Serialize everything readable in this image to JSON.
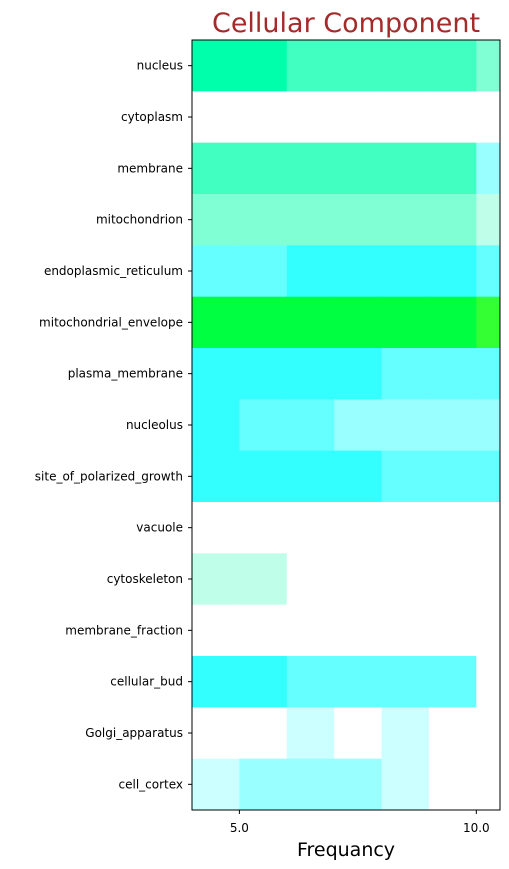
{
  "chart_data": {
    "type": "heatmap",
    "title": "Cellular Component",
    "title_color": "#a52a2a",
    "xlabel": "Frequancy",
    "ylabel": "",
    "x_ticks": [
      "5.0",
      "10.0"
    ],
    "x_tick_values": [
      5,
      10
    ],
    "x_columns": [
      4.5,
      5.5,
      6.5,
      7.5,
      8.5,
      9.5,
      10.5
    ],
    "xlim": [
      4,
      10.5
    ],
    "rows": [
      "nucleus",
      "cytoplasm",
      "membrane",
      "mitochondrion",
      "endoplasmic_reticulum",
      "mitochondrial_envelope",
      "plasma_membrane",
      "nucleolus",
      "site_of_polarized_growth",
      "vacuole",
      "cytoskeleton",
      "membrane_fraction",
      "cellular_bud",
      "Golgi_apparatus",
      "cell_cortex"
    ],
    "cell_colors": [
      [
        "#00ffaa",
        "#00ffaa",
        "#40ffc0",
        "#40ffc0",
        "#40ffc0",
        "#40ffc0",
        "#80ffd4"
      ],
      [
        "#ffffff",
        "#ffffff",
        "#ffffff",
        "#ffffff",
        "#ffffff",
        "#ffffff",
        "#ffffff"
      ],
      [
        "#40ffc0",
        "#40ffc0",
        "#40ffc0",
        "#40ffc0",
        "#40ffc0",
        "#40ffc0",
        "#99ffff"
      ],
      [
        "#80ffd4",
        "#80ffd4",
        "#80ffd4",
        "#80ffd4",
        "#80ffd4",
        "#80ffd4",
        "#bfffe9"
      ],
      [
        "#66ffff",
        "#66ffff",
        "#33ffff",
        "#33ffff",
        "#33ffff",
        "#33ffff",
        "#66ffff"
      ],
      [
        "#00ff40",
        "#00ff40",
        "#00ff40",
        "#00ff40",
        "#00ff40",
        "#00ff40",
        "#33ff33"
      ],
      [
        "#33ffff",
        "#33ffff",
        "#33ffff",
        "#33ffff",
        "#66ffff",
        "#66ffff",
        "#66ffff"
      ],
      [
        "#33ffff",
        "#66ffff",
        "#66ffff",
        "#99ffff",
        "#99ffff",
        "#99ffff",
        "#99ffff"
      ],
      [
        "#33ffff",
        "#33ffff",
        "#33ffff",
        "#33ffff",
        "#66ffff",
        "#66ffff",
        "#66ffff"
      ],
      [
        "#ffffff",
        "#ffffff",
        "#ffffff",
        "#ffffff",
        "#ffffff",
        "#ffffff",
        "#ffffff"
      ],
      [
        "#bfffe9",
        "#bfffe9",
        "#ffffff",
        "#ffffff",
        "#ffffff",
        "#ffffff",
        "#ffffff"
      ],
      [
        "#ffffff",
        "#ffffff",
        "#ffffff",
        "#ffffff",
        "#ffffff",
        "#ffffff",
        "#ffffff"
      ],
      [
        "#33ffff",
        "#33ffff",
        "#66ffff",
        "#66ffff",
        "#66ffff",
        "#66ffff",
        "#ffffff"
      ],
      [
        "#ffffff",
        "#ffffff",
        "#ccffff",
        "#ffffff",
        "#ccffff",
        "#ffffff",
        "#ffffff"
      ],
      [
        "#ccffff",
        "#99ffff",
        "#99ffff",
        "#99ffff",
        "#ccffff",
        "#ffffff",
        "#ffffff"
      ]
    ],
    "grid": false,
    "legend": "none"
  }
}
